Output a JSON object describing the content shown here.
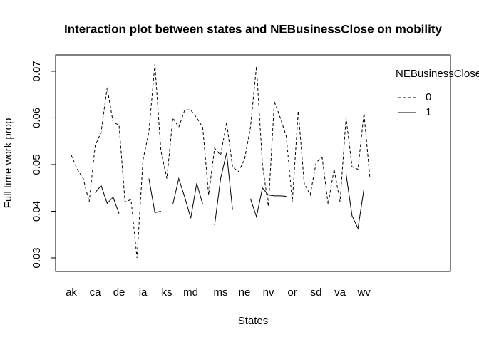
{
  "chart_data": {
    "type": "line",
    "title": "Interaction plot between states and NEBusinessClose on mobility",
    "x_label": "States",
    "y_label": "Full time work prop",
    "categories": [
      "ak",
      null,
      null,
      null,
      "ca",
      null,
      null,
      null,
      "de",
      null,
      null,
      null,
      "ia",
      null,
      null,
      null,
      "ks",
      null,
      null,
      null,
      "md",
      null,
      null,
      null,
      null,
      "ms",
      null,
      null,
      null,
      "ne",
      null,
      null,
      null,
      "nv",
      null,
      null,
      null,
      "or",
      null,
      null,
      null,
      "sd",
      null,
      null,
      null,
      "va",
      null,
      null,
      null,
      "wv",
      null
    ],
    "series": [
      {
        "name": "0",
        "color": "#000000",
        "linestyle": "dashed",
        "values": [
          0.052,
          0.049,
          0.047,
          0.042,
          0.054,
          0.057,
          0.0665,
          0.059,
          0.0585,
          0.042,
          0.0425,
          0.03,
          0.051,
          0.057,
          0.0715,
          0.053,
          0.047,
          0.06,
          0.058,
          0.0617,
          0.0617,
          0.06,
          0.058,
          0.0435,
          0.0535,
          0.052,
          0.059,
          0.0495,
          0.0485,
          0.051,
          0.058,
          0.071,
          0.05,
          0.041,
          0.0635,
          0.06,
          0.056,
          0.042,
          0.0615,
          0.046,
          0.0435,
          0.0505,
          0.0515,
          0.0415,
          0.049,
          0.042,
          0.06,
          0.0495,
          0.049,
          0.061,
          0.047
        ]
      },
      {
        "name": "1",
        "color": "#000000",
        "linestyle": "solid",
        "values": [
          null,
          null,
          null,
          null,
          0.044,
          0.0455,
          0.0417,
          0.043,
          0.0395,
          null,
          null,
          null,
          null,
          0.047,
          0.0397,
          0.04,
          null,
          0.0415,
          0.047,
          0.043,
          0.0385,
          0.046,
          0.0415,
          null,
          0.037,
          0.047,
          0.0525,
          0.0403,
          null,
          null,
          0.0427,
          0.0388,
          0.045,
          0.0435,
          0.0433,
          0.0433,
          0.0432,
          null,
          null,
          null,
          null,
          null,
          null,
          null,
          null,
          null,
          0.048,
          0.039,
          0.0363,
          0.0448,
          null
        ]
      }
    ],
    "ylim": [
      0.0271,
      0.0735
    ],
    "yticks": [
      0.03,
      0.04,
      0.05,
      0.06,
      0.07
    ],
    "legend_title": "NEBusinessClose",
    "legend": "top-right"
  }
}
